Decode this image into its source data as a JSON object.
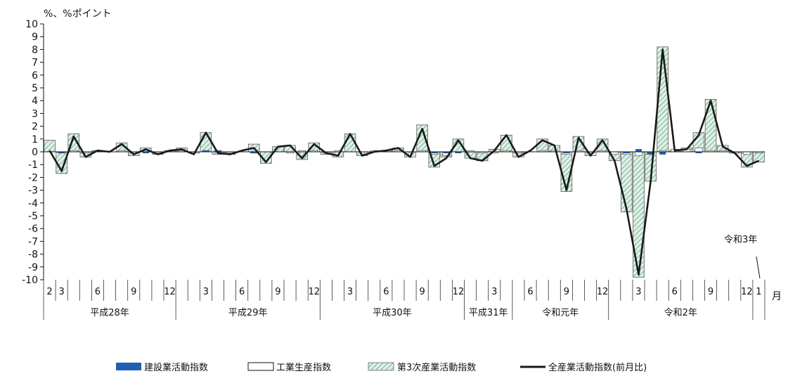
{
  "chart_data": {
    "type": "bar",
    "unit_label": "%、%ポイント",
    "x_unit_label": "月",
    "annotation": "令和3年",
    "ylim": [
      -10,
      10
    ],
    "y_ticks": [
      "10",
      "9",
      "8",
      "7",
      "6",
      "5",
      "4",
      "3",
      "2",
      "1",
      "0",
      "-1",
      "-2",
      "-3",
      "-4",
      "-5",
      "-6",
      "-7",
      "-8",
      "-9",
      "-10"
    ],
    "legend_position": "bottom",
    "colors": {
      "construction": "#1f5fb5",
      "industrial": "#ffffff",
      "tertiary_fill": "#dff0e6",
      "tertiary_hatch": "#5ea07a",
      "all_industry": "#1a1a1a"
    },
    "months": [
      "2",
      "3",
      "",
      "",
      "6",
      "",
      "",
      "9",
      "",
      "",
      "12",
      "",
      "",
      "3",
      "",
      "",
      "6",
      "",
      "",
      "9",
      "",
      "",
      "12",
      "",
      "",
      "3",
      "",
      "",
      "6",
      "",
      "",
      "9",
      "",
      "",
      "12",
      "",
      "",
      "3",
      "",
      "",
      "6",
      "",
      "",
      "9",
      "",
      "",
      "12",
      "",
      "",
      "3",
      "",
      "",
      "6",
      "",
      "",
      "9",
      "",
      "",
      "12",
      "1"
    ],
    "month_labels_shown": [
      "2",
      "3",
      "6",
      "9",
      "12",
      "3",
      "6",
      "9",
      "12",
      "3",
      "6",
      "9",
      "12",
      "3",
      "6",
      "9",
      "12",
      "3",
      "6",
      "9",
      "12",
      "1"
    ],
    "year_groups": [
      {
        "label": "平成28年",
        "start": 0,
        "end": 10
      },
      {
        "label": "平成29年",
        "start": 11,
        "end": 22
      },
      {
        "label": "平成30年",
        "start": 23,
        "end": 34
      },
      {
        "label": "平成31年",
        "start": 35,
        "end": 38
      },
      {
        "label": "令和元年",
        "start": 39,
        "end": 46
      },
      {
        "label": "令和2年",
        "start": 47,
        "end": 58
      },
      {
        "label": "",
        "start": 59,
        "end": 59
      }
    ],
    "series": [
      {
        "name": "建設業活動指数",
        "type": "bar",
        "values": [
          0.0,
          -0.1,
          0.0,
          0.0,
          0.0,
          0.0,
          0.0,
          0.0,
          -0.1,
          0.0,
          0.0,
          0.0,
          0.0,
          0.1,
          0.1,
          0.0,
          0.0,
          -0.1,
          0.0,
          0.0,
          0.0,
          0.0,
          0.0,
          0.0,
          0.0,
          0.0,
          0.0,
          0.0,
          0.0,
          0.0,
          0.0,
          0.0,
          -0.1,
          -0.1,
          -0.1,
          0.0,
          0.0,
          0.0,
          0.0,
          0.0,
          0.0,
          0.0,
          0.0,
          -0.1,
          0.0,
          0.0,
          0.0,
          0.0,
          -0.1,
          0.2,
          -0.2,
          -0.2,
          0.0,
          0.0,
          -0.1,
          0.0,
          0.0,
          0.0,
          0.0,
          0.0
        ]
      },
      {
        "name": "工業生産指数",
        "type": "bar",
        "values": [
          0.0,
          -0.1,
          0.1,
          -0.1,
          0.1,
          0.0,
          0.1,
          -0.1,
          0.0,
          -0.1,
          0.1,
          0.1,
          0.0,
          0.1,
          0.1,
          -0.1,
          0.0,
          -0.1,
          0.0,
          0.0,
          -0.1,
          0.1,
          0.1,
          -0.1,
          0.1,
          0.0,
          0.0,
          0.1,
          0.0,
          0.1,
          0.0,
          0.1,
          -0.2,
          -0.3,
          0.0,
          0.1,
          -0.1,
          -0.1,
          0.1,
          -0.1,
          0.0,
          0.1,
          0.1,
          -0.2,
          0.1,
          -0.1,
          0.1,
          -0.2,
          -0.2,
          -0.3,
          -0.2,
          0.1,
          0.2,
          0.2,
          0.3,
          0.1,
          0.1,
          -0.1,
          -0.2,
          -0.1
        ]
      },
      {
        "name": "第3次産業活動指数",
        "type": "bar",
        "values": [
          0.9,
          -1.7,
          1.4,
          -0.4,
          0.1,
          0.0,
          0.7,
          -0.3,
          0.3,
          -0.2,
          0.1,
          0.3,
          -0.1,
          1.5,
          -0.2,
          -0.2,
          0.0,
          0.6,
          -0.9,
          0.4,
          0.5,
          -0.6,
          0.7,
          -0.2,
          -0.4,
          1.4,
          -0.3,
          0.0,
          0.1,
          0.3,
          -0.4,
          2.1,
          -1.2,
          -0.4,
          1.0,
          -0.5,
          -0.7,
          0.2,
          1.3,
          -0.4,
          0.0,
          1.0,
          0.5,
          -3.1,
          1.2,
          -0.3,
          1.0,
          -0.7,
          -4.7,
          -9.8,
          -2.3,
          8.2,
          0.1,
          0.3,
          1.5,
          4.1,
          0.5,
          -0.1,
          -1.2,
          -0.8
        ]
      },
      {
        "name": "全産業活動指数(前月比)",
        "type": "line",
        "values": [
          0.1,
          -1.5,
          1.2,
          -0.4,
          0.1,
          0.0,
          0.6,
          -0.2,
          0.2,
          -0.2,
          0.1,
          0.2,
          -0.2,
          1.5,
          -0.1,
          -0.2,
          0.1,
          0.3,
          -0.8,
          0.4,
          0.5,
          -0.5,
          0.6,
          -0.1,
          -0.3,
          1.4,
          -0.3,
          0.0,
          0.1,
          0.3,
          -0.4,
          1.8,
          -1.1,
          -0.5,
          0.9,
          -0.5,
          -0.7,
          0.1,
          1.3,
          -0.4,
          0.1,
          0.9,
          0.5,
          -3.0,
          1.1,
          -0.3,
          0.9,
          -0.7,
          -4.5,
          -9.6,
          -2.3,
          8.0,
          0.1,
          0.2,
          1.3,
          4.0,
          0.4,
          -0.1,
          -1.1,
          -0.7
        ]
      }
    ]
  }
}
